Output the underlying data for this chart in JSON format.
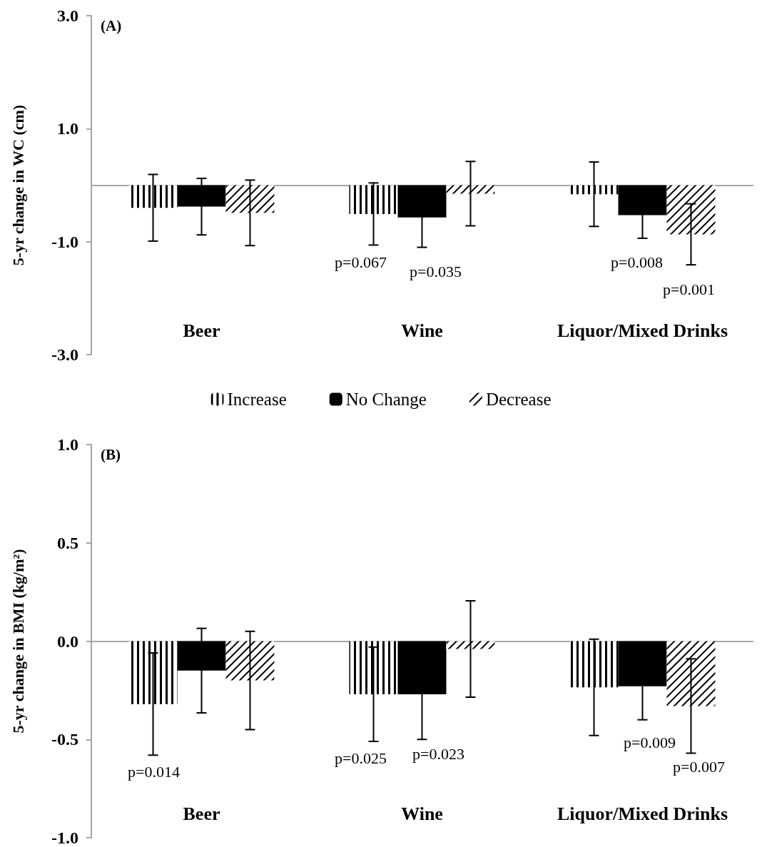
{
  "chart_data": [
    {
      "type": "bar",
      "title": "(A)",
      "ylabel": "5-yr change in WC (cm)",
      "categories": [
        "Beer",
        "Wine",
        "Liquor/Mixed Drinks"
      ],
      "series": [
        {
          "color": "#000000",
          "values": [
            -0.4,
            -0.51,
            -0.16
          ],
          "errors": [
            0.59,
            0.55,
            0.57
          ]
        },
        {
          "color": "#000000",
          "values": [
            -0.38,
            -0.57,
            -0.53
          ],
          "errors": [
            0.5,
            0.53,
            0.41
          ]
        },
        {
          "color": "#000000",
          "values": [
            -0.49,
            -0.15,
            -0.87
          ],
          "errors": [
            0.58,
            0.57,
            0.54
          ]
        }
      ],
      "ylim": [
        -3,
        3
      ],
      "yticks": [
        {
          "value": -3,
          "label": "-3.0"
        },
        {
          "value": -1,
          "label": "-1.0"
        },
        {
          "value": 1,
          "label": "1.0"
        },
        {
          "value": 3,
          "label": "3.0"
        }
      ],
      "annotations": [
        "p=0.067",
        "p=0.035",
        "p=0.008",
        "p=0.001"
      ]
    },
    {
      "type": "bar",
      "title": "(B)",
      "ylabel": "5-yr change in BMI (kg/m²)",
      "categories": [
        "Beer",
        "Wine",
        "Liquor/Mixed Drinks"
      ],
      "series": [
        {
          "name": "Increase",
          "color": "#000000",
          "values": [
            -0.32,
            -0.27,
            -0.235
          ],
          "errors": [
            0.26,
            0.24,
            0.245
          ]
        },
        {
          "name": "No Change",
          "color": "#000000",
          "values": [
            -0.15,
            -0.27,
            -0.23
          ],
          "errors": [
            0.215,
            0.23,
            0.17
          ]
        },
        {
          "name": "Decrease",
          "color": "#000000",
          "values": [
            -0.2,
            -0.04,
            -0.33
          ],
          "errors": [
            0.25,
            0.245,
            0.24
          ]
        }
      ],
      "ylim": [
        -1,
        1
      ],
      "yticks": [
        {
          "value": -1,
          "label": "-1.0"
        },
        {
          "value": -0.5,
          "label": "-0.5"
        },
        {
          "value": 0,
          "label": "0.0"
        },
        {
          "value": 0.5,
          "label": "0.5"
        },
        {
          "value": 1,
          "label": "1.0"
        }
      ],
      "legend": "top",
      "annotations": [
        "p=0.014",
        "p=0.025",
        "p=0.023",
        "p=0.009",
        "p=0.007"
      ]
    }
  ]
}
